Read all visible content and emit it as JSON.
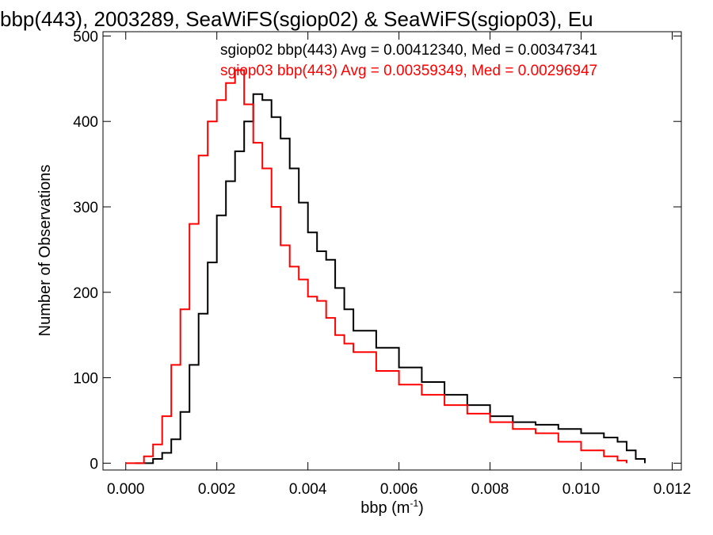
{
  "chart_data": {
    "type": "line",
    "title": "bbp(443), 2003289, SeaWiFS(sgiop02) & SeaWiFS(sgiop03), Eu",
    "xlabel_main": "bbp (m",
    "xlabel_sup": "-1",
    "xlabel_close": ")",
    "ylabel": "Number of Observations",
    "xlim": [
      -0.0005,
      0.0122
    ],
    "ylim": [
      -8,
      505
    ],
    "x_ticks": [
      0.0,
      0.002,
      0.004,
      0.006,
      0.008,
      0.01,
      0.012
    ],
    "x_tick_labels": [
      "0.000",
      "0.002",
      "0.004",
      "0.006",
      "0.008",
      "0.010",
      "0.012"
    ],
    "y_ticks": [
      0,
      100,
      200,
      300,
      400,
      500
    ],
    "y_tick_labels": [
      "0",
      "100",
      "200",
      "300",
      "400",
      "500"
    ],
    "legend": [
      {
        "text": "sgiop02 bbp(443) Avg = 0.00412340, Med = 0.00347341",
        "color": "#000000"
      },
      {
        "text": "sgiop03 bbp(443) Avg = 0.00359349, Med = 0.00296947",
        "color": "#ff0000"
      }
    ],
    "series": [
      {
        "name": "sgiop02",
        "color": "#000000",
        "points": [
          [
            0.0002,
            0
          ],
          [
            0.0006,
            5
          ],
          [
            0.0008,
            12
          ],
          [
            0.001,
            28
          ],
          [
            0.0012,
            60
          ],
          [
            0.0014,
            115
          ],
          [
            0.0016,
            175
          ],
          [
            0.0018,
            235
          ],
          [
            0.002,
            290
          ],
          [
            0.0022,
            330
          ],
          [
            0.0024,
            365
          ],
          [
            0.0026,
            400
          ],
          [
            0.0028,
            432
          ],
          [
            0.003,
            425
          ],
          [
            0.0032,
            405
          ],
          [
            0.0034,
            380
          ],
          [
            0.0036,
            345
          ],
          [
            0.0038,
            305
          ],
          [
            0.004,
            270
          ],
          [
            0.0042,
            248
          ],
          [
            0.0044,
            238
          ],
          [
            0.0046,
            205
          ],
          [
            0.0048,
            180
          ],
          [
            0.005,
            155
          ],
          [
            0.0055,
            135
          ],
          [
            0.006,
            112
          ],
          [
            0.0065,
            95
          ],
          [
            0.007,
            80
          ],
          [
            0.0075,
            68
          ],
          [
            0.008,
            55
          ],
          [
            0.0085,
            48
          ],
          [
            0.009,
            45
          ],
          [
            0.0095,
            40
          ],
          [
            0.01,
            35
          ],
          [
            0.0105,
            30
          ],
          [
            0.0108,
            25
          ],
          [
            0.011,
            15
          ],
          [
            0.0112,
            5
          ],
          [
            0.0114,
            0
          ]
        ]
      },
      {
        "name": "sgiop03",
        "color": "#ff0000",
        "points": [
          [
            0.0,
            0
          ],
          [
            0.0004,
            8
          ],
          [
            0.0006,
            22
          ],
          [
            0.0008,
            55
          ],
          [
            0.001,
            115
          ],
          [
            0.0012,
            180
          ],
          [
            0.0014,
            280
          ],
          [
            0.0016,
            360
          ],
          [
            0.0018,
            400
          ],
          [
            0.002,
            425
          ],
          [
            0.0022,
            445
          ],
          [
            0.0024,
            460
          ],
          [
            0.0026,
            420
          ],
          [
            0.0028,
            375
          ],
          [
            0.003,
            345
          ],
          [
            0.0032,
            300
          ],
          [
            0.0034,
            255
          ],
          [
            0.0036,
            230
          ],
          [
            0.0038,
            215
          ],
          [
            0.004,
            195
          ],
          [
            0.0042,
            190
          ],
          [
            0.0044,
            170
          ],
          [
            0.0046,
            150
          ],
          [
            0.0048,
            140
          ],
          [
            0.005,
            130
          ],
          [
            0.0055,
            108
          ],
          [
            0.006,
            92
          ],
          [
            0.0065,
            80
          ],
          [
            0.007,
            68
          ],
          [
            0.0075,
            58
          ],
          [
            0.008,
            48
          ],
          [
            0.0085,
            40
          ],
          [
            0.009,
            35
          ],
          [
            0.0095,
            25
          ],
          [
            0.01,
            15
          ],
          [
            0.0105,
            8
          ],
          [
            0.0108,
            3
          ],
          [
            0.011,
            0
          ]
        ]
      }
    ]
  }
}
